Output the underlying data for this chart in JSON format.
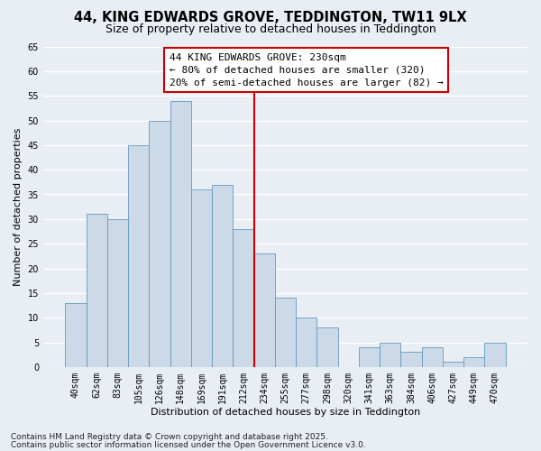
{
  "title": "44, KING EDWARDS GROVE, TEDDINGTON, TW11 9LX",
  "subtitle": "Size of property relative to detached houses in Teddington",
  "xlabel": "Distribution of detached houses by size in Teddington",
  "ylabel": "Number of detached properties",
  "categories": [
    "40sqm",
    "62sqm",
    "83sqm",
    "105sqm",
    "126sqm",
    "148sqm",
    "169sqm",
    "191sqm",
    "212sqm",
    "234sqm",
    "255sqm",
    "277sqm",
    "298sqm",
    "320sqm",
    "341sqm",
    "363sqm",
    "384sqm",
    "406sqm",
    "427sqm",
    "449sqm",
    "470sqm"
  ],
  "values": [
    13,
    31,
    30,
    45,
    50,
    54,
    36,
    37,
    28,
    23,
    14,
    10,
    8,
    0,
    4,
    5,
    3,
    4,
    1,
    2,
    5
  ],
  "bar_color": "#ccd9e8",
  "bar_edge_color": "#6699bb",
  "vline_color": "#cc0000",
  "vline_pos": 9,
  "ylim": [
    0,
    65
  ],
  "yticks": [
    0,
    5,
    10,
    15,
    20,
    25,
    30,
    35,
    40,
    45,
    50,
    55,
    60,
    65
  ],
  "annotation_title": "44 KING EDWARDS GROVE: 230sqm",
  "annotation_line1": "← 80% of detached houses are smaller (320)",
  "annotation_line2": "20% of semi-detached houses are larger (82) →",
  "background_color": "#e8eef4",
  "grid_color": "#ffffff",
  "title_fontsize": 10.5,
  "subtitle_fontsize": 9,
  "axis_label_fontsize": 8,
  "tick_fontsize": 7,
  "annotation_fontsize": 8,
  "footer_fontsize": 6.5,
  "footer1": "Contains HM Land Registry data © Crown copyright and database right 2025.",
  "footer2": "Contains public sector information licensed under the Open Government Licence v3.0."
}
